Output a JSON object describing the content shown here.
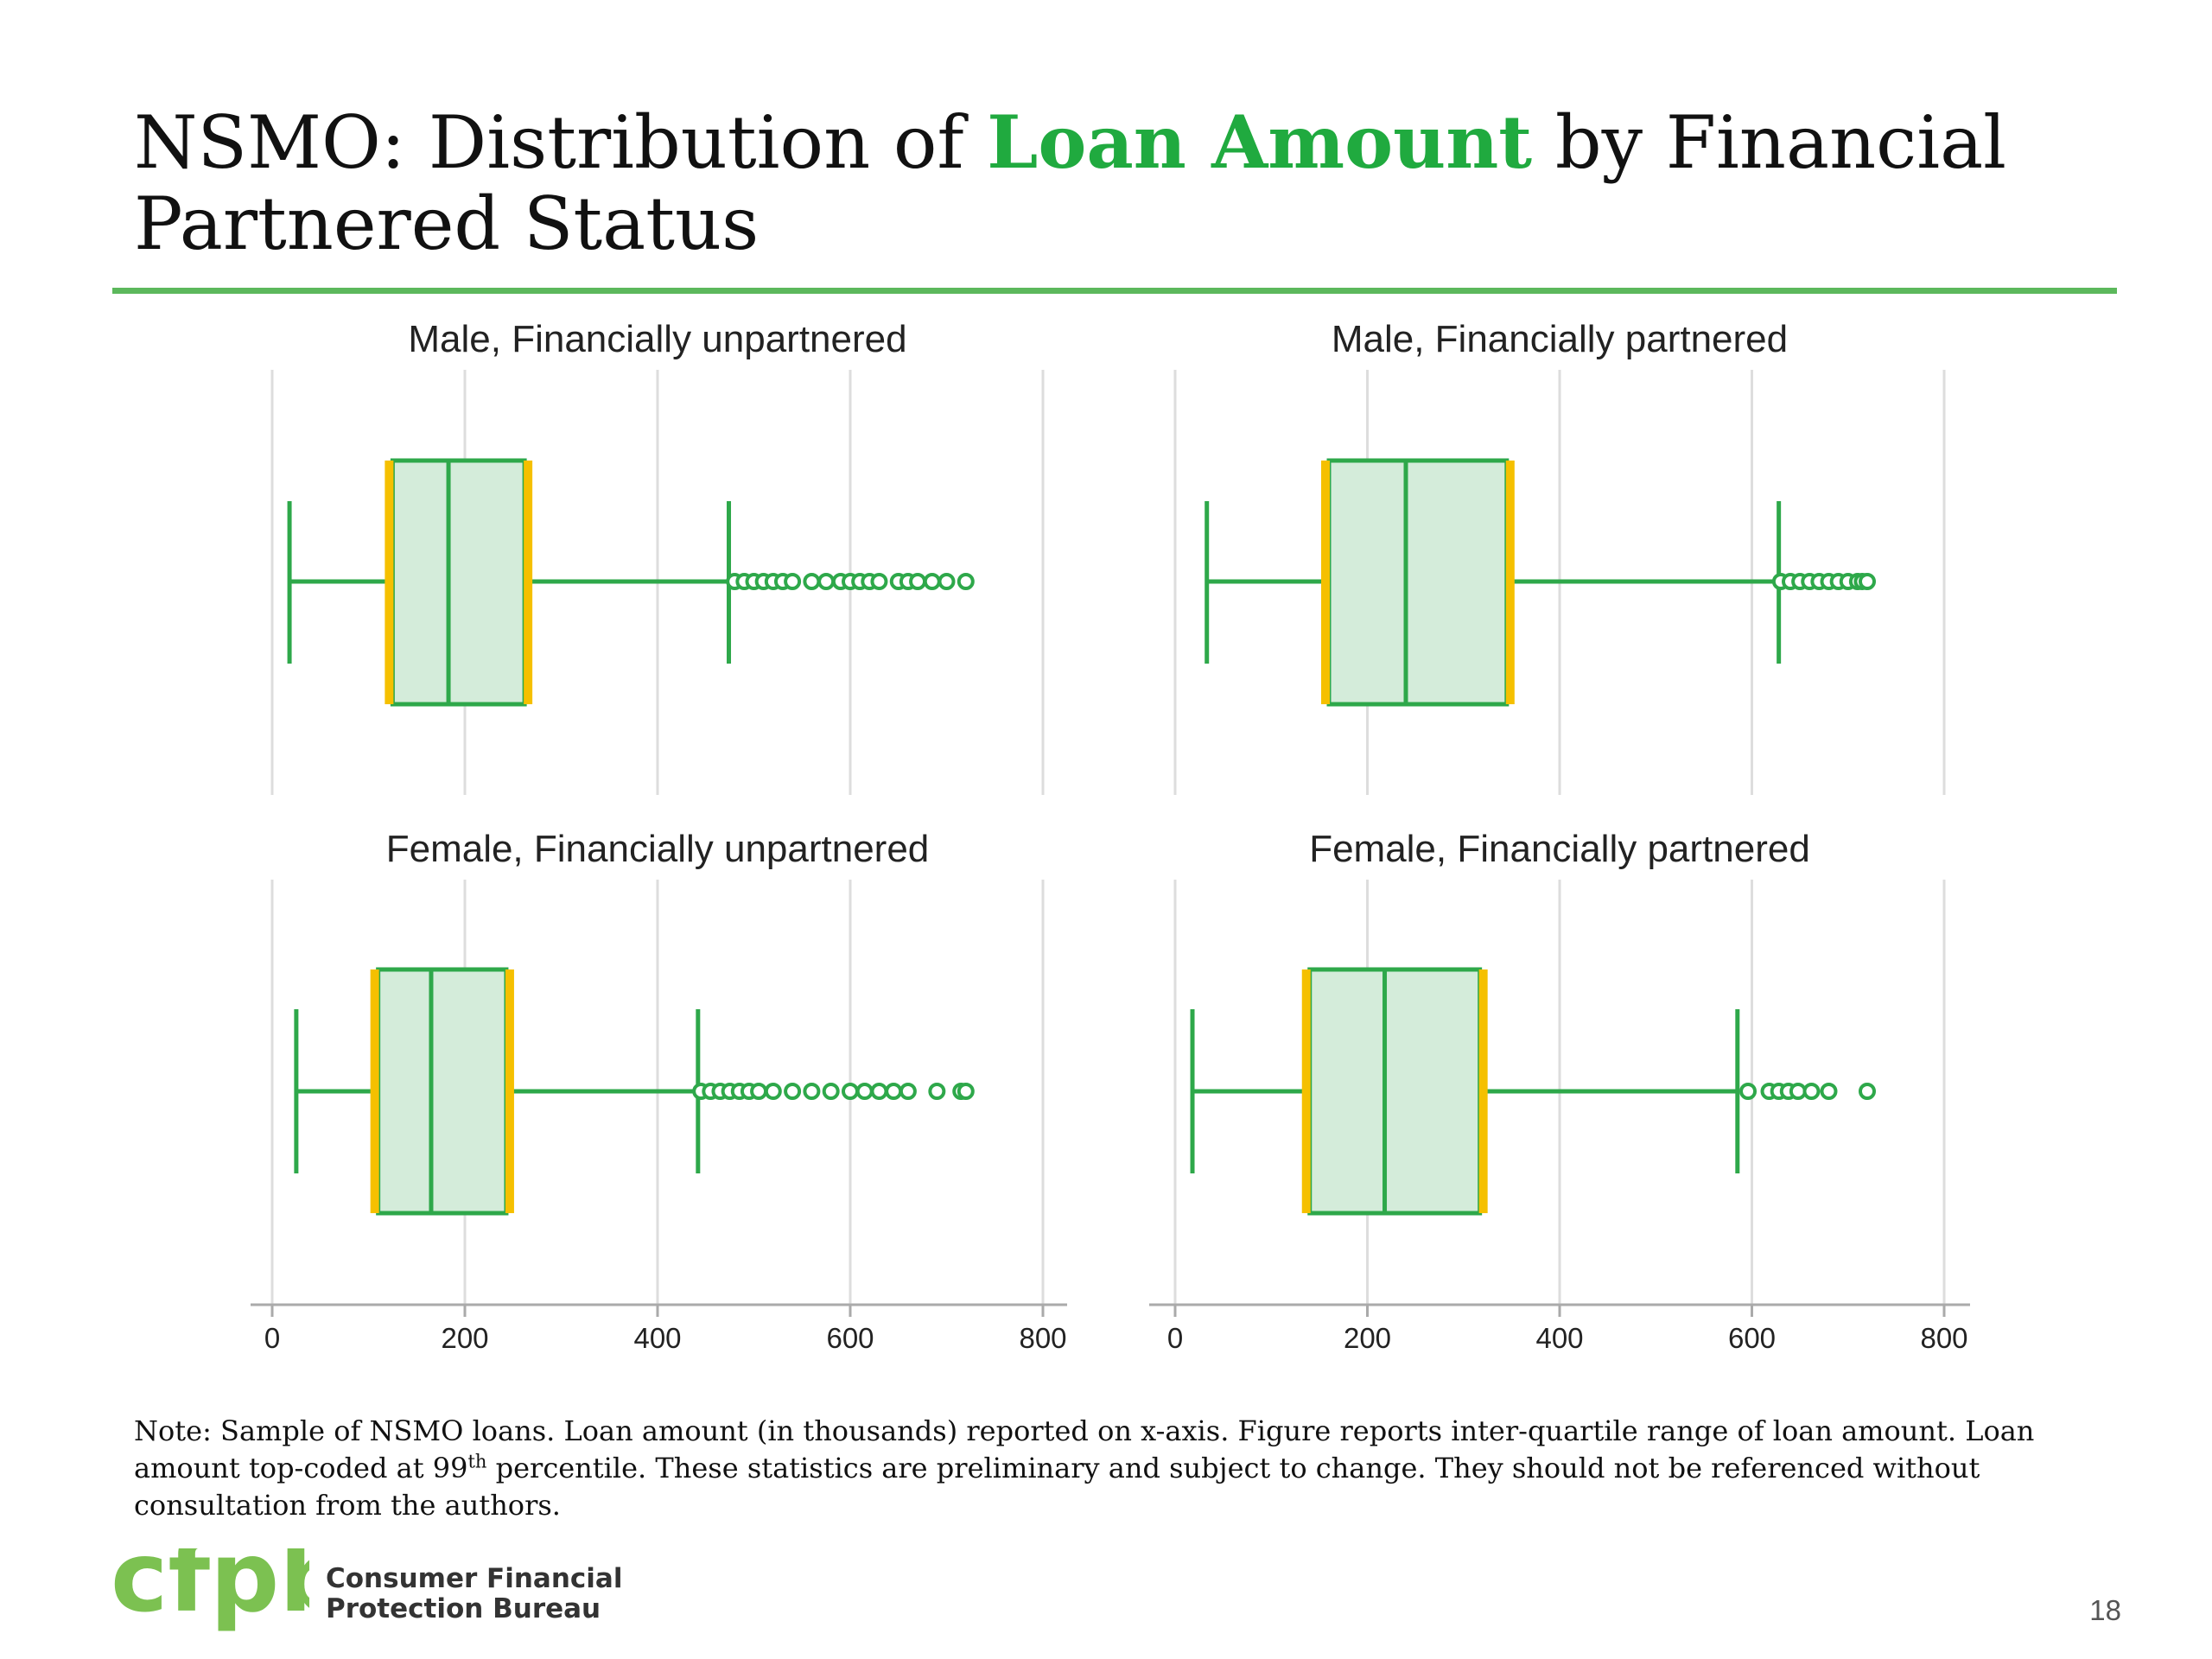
{
  "slide": {
    "title_part1": "NSMO: Distribution of ",
    "title_highlight": "Loan Amount",
    "title_part2": " by Financial Partnered Status",
    "note_part1": "Note: Sample of NSMO loans. Loan amount (in thousands) reported on x-axis. Figure reports inter-quartile range of loan amount. Loan amount top-coded at 99",
    "note_sup": "th",
    "note_part2": " percentile. These statistics are preliminary and subject to change. They should not be referenced without consultation from the authors.",
    "org_line1": "Consumer Financial",
    "org_line2": "Protection Bureau",
    "logo_text": "cfpb",
    "page_number": "18"
  },
  "colors": {
    "title_accent": "#20aa3f",
    "rule": "#5cb85c",
    "box_stroke": "#2ea84a",
    "box_fill": "#d4ecda",
    "quartile_accent": "#f5c000",
    "grid": "#dddddd",
    "logo": "#7cc151"
  },
  "chart_data": [
    {
      "type": "boxplot",
      "title": "Male, Financially unpartnered",
      "xlim": [
        0,
        800
      ],
      "xticks": [
        0,
        200,
        400,
        600,
        800
      ],
      "whisker_low": 18,
      "q1": 125,
      "median": 183,
      "q3": 262,
      "whisker_high": 474,
      "outliers": [
        480,
        490,
        500,
        510,
        520,
        530,
        540,
        560,
        575,
        590,
        600,
        610,
        620,
        630,
        650,
        660,
        670,
        685,
        700,
        720
      ]
    },
    {
      "type": "boxplot",
      "title": "Male, Financially partnered",
      "xlim": [
        0,
        800
      ],
      "xticks": [
        0,
        200,
        400,
        600,
        800
      ],
      "whisker_low": 33,
      "q1": 160,
      "median": 240,
      "q3": 345,
      "whisker_high": 628,
      "outliers": [
        630,
        640,
        650,
        660,
        670,
        680,
        690,
        700,
        710,
        715,
        720
      ]
    },
    {
      "type": "boxplot",
      "title": "Female, Financially unpartnered",
      "xlim": [
        0,
        800
      ],
      "xticks": [
        0,
        200,
        400,
        600,
        800
      ],
      "whisker_low": 25,
      "q1": 110,
      "median": 165,
      "q3": 243,
      "whisker_high": 442,
      "outliers": [
        445,
        455,
        465,
        475,
        485,
        495,
        505,
        520,
        540,
        560,
        580,
        600,
        615,
        630,
        645,
        660,
        690,
        715,
        720
      ]
    },
    {
      "type": "boxplot",
      "title": "Female, Financially partnered",
      "xlim": [
        0,
        800
      ],
      "xticks": [
        0,
        200,
        400,
        600,
        800
      ],
      "whisker_low": 18,
      "q1": 140,
      "median": 218,
      "q3": 317,
      "whisker_high": 585,
      "outliers": [
        596,
        618,
        628,
        638,
        648,
        662,
        680,
        720
      ]
    }
  ]
}
